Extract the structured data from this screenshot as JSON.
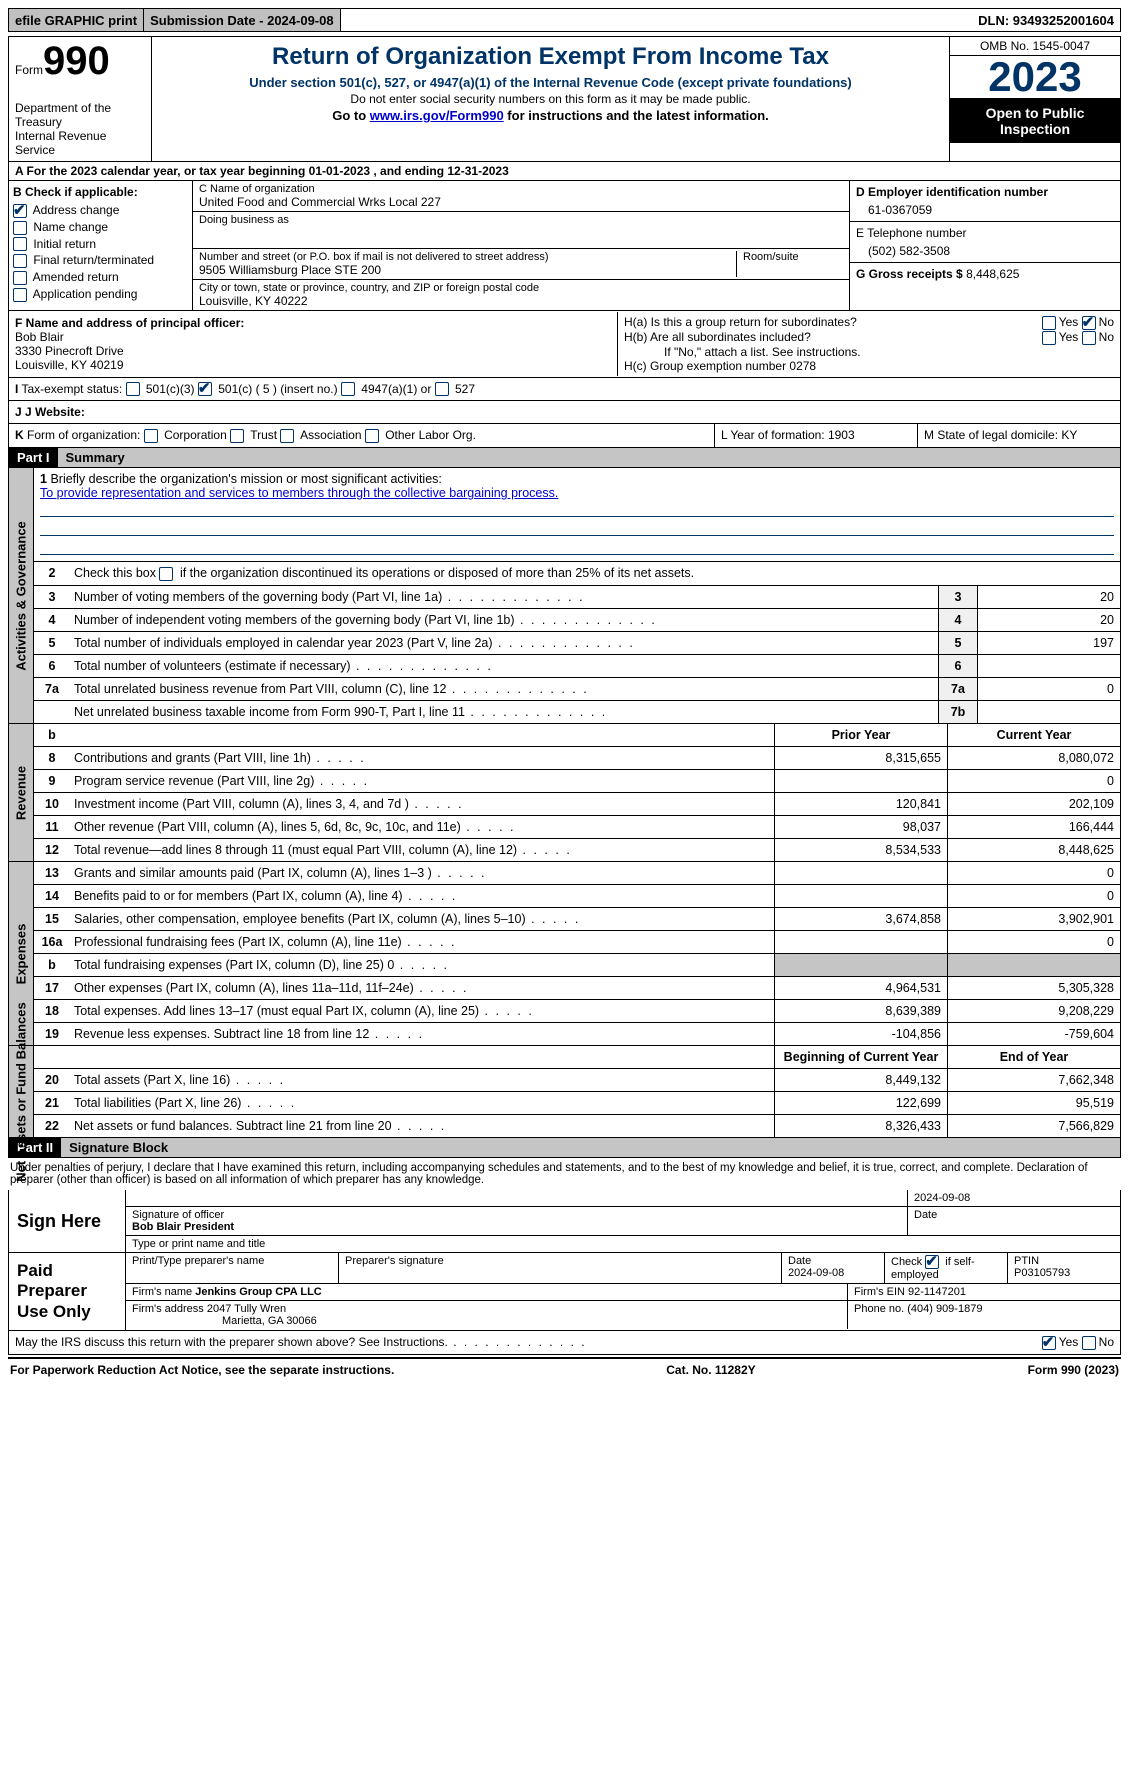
{
  "topbar": {
    "efile": "efile GRAPHIC print",
    "submission": "Submission Date - 2024-09-08",
    "dln": "DLN: 93493252001604"
  },
  "header": {
    "form_label": "Form",
    "form_no": "990",
    "dept": "Department of the Treasury\nInternal Revenue Service",
    "title": "Return of Organization Exempt From Income Tax",
    "subtitle": "Under section 501(c), 527, or 4947(a)(1) of the Internal Revenue Code (except private foundations)",
    "note": "Do not enter social security numbers on this form as it may be made public.",
    "goto_prefix": "Go to ",
    "goto_link": "www.irs.gov/Form990",
    "goto_suffix": " for instructions and the latest information.",
    "omb": "OMB No. 1545-0047",
    "year": "2023",
    "inspection": "Open to Public Inspection"
  },
  "row_a": "A   For the 2023 calendar year, or tax year beginning 01-01-2023   , and ending 12-31-2023",
  "col_b": {
    "header": "B Check if applicable:",
    "items": [
      {
        "label": "Address change",
        "checked": true
      },
      {
        "label": "Name change",
        "checked": false
      },
      {
        "label": "Initial return",
        "checked": false
      },
      {
        "label": "Final return/terminated",
        "checked": false
      },
      {
        "label": "Amended return",
        "checked": false
      },
      {
        "label": "Application pending",
        "checked": false
      }
    ]
  },
  "col_c": {
    "name_label": "C Name of organization",
    "name": "United Food and Commercial Wrks Local 227",
    "dba_label": "Doing business as",
    "dba": "",
    "addr_label": "Number and street (or P.O. box if mail is not delivered to street address)",
    "room_label": "Room/suite",
    "addr": "9505 Williamsburg Place STE 200",
    "city_label": "City or town, state or province, country, and ZIP or foreign postal code",
    "city": "Louisville, KY  40222"
  },
  "col_d": {
    "ein_label": "D Employer identification number",
    "ein": "61-0367059",
    "tel_label": "E Telephone number",
    "tel": "(502) 582-3508",
    "gross_label": "G Gross receipts $ ",
    "gross": "8,448,625"
  },
  "section_f": {
    "label": "F  Name and address of principal officer:",
    "name": "Bob Blair",
    "addr1": "3330 Pinecroft Drive",
    "addr2": "Louisville, KY  40219"
  },
  "section_h": {
    "ha": "H(a)  Is this a group return for subordinates?",
    "hb": "H(b)  Are all subordinates included?",
    "hb_note": "If \"No,\" attach a list. See instructions.",
    "hc": "H(c)  Group exemption number    0278",
    "yes": "Yes",
    "no": "No"
  },
  "tax_status": {
    "label": "I  Tax-exempt status:",
    "opt1": "501(c)(3)",
    "opt2": "501(c) ( 5 ) (insert no.)",
    "opt3": "4947(a)(1) or",
    "opt4": "527"
  },
  "website": {
    "label": "J  Website:",
    "value": ""
  },
  "form_org": {
    "label": "K Form of organization:",
    "opts": [
      "Corporation",
      "Trust",
      "Association",
      "Other  Labor Org."
    ],
    "year_label": "L Year of formation: 1903",
    "state_label": "M State of legal domicile: KY"
  },
  "part1": {
    "label": "Part I",
    "title": "Summary"
  },
  "summary": {
    "side1": "Activities & Governance",
    "side2": "Revenue",
    "side3": "Expenses",
    "side4": "Net Assets or Fund Balances",
    "line1_label": "Briefly describe the organization's mission or most significant activities:",
    "line1_text": "To provide representation and services to members through the collective bargaining process.",
    "line2": "Check this box       if the organization discontinued its operations or disposed of more than 25% of its net assets.",
    "lines_gov": [
      {
        "n": "3",
        "d": "Number of voting members of the governing body (Part VI, line 1a)",
        "bn": "3",
        "v": "20"
      },
      {
        "n": "4",
        "d": "Number of independent voting members of the governing body (Part VI, line 1b)",
        "bn": "4",
        "v": "20"
      },
      {
        "n": "5",
        "d": "Total number of individuals employed in calendar year 2023 (Part V, line 2a)",
        "bn": "5",
        "v": "197"
      },
      {
        "n": "6",
        "d": "Total number of volunteers (estimate if necessary)",
        "bn": "6",
        "v": ""
      },
      {
        "n": "7a",
        "d": "Total unrelated business revenue from Part VIII, column (C), line 12",
        "bn": "7a",
        "v": "0"
      },
      {
        "n": "",
        "d": "Net unrelated business taxable income from Form 990-T, Part I, line 11",
        "bn": "7b",
        "v": ""
      }
    ],
    "col_headers_b": {
      "n": "b",
      "prior": "Prior Year",
      "curr": "Current Year"
    },
    "lines_rev": [
      {
        "n": "8",
        "d": "Contributions and grants (Part VIII, line 1h)",
        "p": "8,315,655",
        "c": "8,080,072"
      },
      {
        "n": "9",
        "d": "Program service revenue (Part VIII, line 2g)",
        "p": "",
        "c": "0"
      },
      {
        "n": "10",
        "d": "Investment income (Part VIII, column (A), lines 3, 4, and 7d )",
        "p": "120,841",
        "c": "202,109"
      },
      {
        "n": "11",
        "d": "Other revenue (Part VIII, column (A), lines 5, 6d, 8c, 9c, 10c, and 11e)",
        "p": "98,037",
        "c": "166,444"
      },
      {
        "n": "12",
        "d": "Total revenue—add lines 8 through 11 (must equal Part VIII, column (A), line 12)",
        "p": "8,534,533",
        "c": "8,448,625"
      }
    ],
    "lines_exp": [
      {
        "n": "13",
        "d": "Grants and similar amounts paid (Part IX, column (A), lines 1–3 )",
        "p": "",
        "c": "0"
      },
      {
        "n": "14",
        "d": "Benefits paid to or for members (Part IX, column (A), line 4)",
        "p": "",
        "c": "0"
      },
      {
        "n": "15",
        "d": "Salaries, other compensation, employee benefits (Part IX, column (A), lines 5–10)",
        "p": "3,674,858",
        "c": "3,902,901"
      },
      {
        "n": "16a",
        "d": "Professional fundraising fees (Part IX, column (A), line 11e)",
        "p": "",
        "c": "0"
      },
      {
        "n": "b",
        "d": "Total fundraising expenses (Part IX, column (D), line 25) 0",
        "p": "GREY",
        "c": "GREY"
      },
      {
        "n": "17",
        "d": "Other expenses (Part IX, column (A), lines 11a–11d, 11f–24e)",
        "p": "4,964,531",
        "c": "5,305,328"
      },
      {
        "n": "18",
        "d": "Total expenses. Add lines 13–17 (must equal Part IX, column (A), line 25)",
        "p": "8,639,389",
        "c": "9,208,229"
      },
      {
        "n": "19",
        "d": "Revenue less expenses. Subtract line 18 from line 12",
        "p": "-104,856",
        "c": "-759,604"
      }
    ],
    "col_headers_net": {
      "prior": "Beginning of Current Year",
      "curr": "End of Year"
    },
    "lines_net": [
      {
        "n": "20",
        "d": "Total assets (Part X, line 16)",
        "p": "8,449,132",
        "c": "7,662,348"
      },
      {
        "n": "21",
        "d": "Total liabilities (Part X, line 26)",
        "p": "122,699",
        "c": "95,519"
      },
      {
        "n": "22",
        "d": "Net assets or fund balances. Subtract line 21 from line 20",
        "p": "8,326,433",
        "c": "7,566,829"
      }
    ]
  },
  "part2": {
    "label": "Part II",
    "title": "Signature Block"
  },
  "perjury": "Under penalties of perjury, I declare that I have examined this return, including accompanying schedules and statements, and to the best of my knowledge and belief, it is true, correct, and complete. Declaration of preparer (other than officer) is based on all information of which preparer has any knowledge.",
  "sign_here": {
    "label": "Sign Here",
    "sig_date": "2024-09-08",
    "sig_label": "Signature of officer",
    "officer": "Bob Blair  President",
    "type_label": "Type or print name and title",
    "date_label": "Date"
  },
  "paid_prep": {
    "label": "Paid Preparer Use Only",
    "col1": "Print/Type preparer's name",
    "col2": "Preparer's signature",
    "col3_label": "Date",
    "col3": "2024-09-08",
    "col4_label": "Check        if self-employed",
    "col5_label": "PTIN",
    "col5": "P03105793",
    "firm_name_label": "Firm's name      ",
    "firm_name": "Jenkins Group CPA LLC",
    "firm_ein": "Firm's EIN  92-1147201",
    "firm_addr_label": "Firm's address ",
    "firm_addr1": "2047 Tully Wren",
    "firm_addr2": "Marietta, GA  30066",
    "phone": "Phone no. (404) 909-1879"
  },
  "discuss": {
    "text": "May the IRS discuss this return with the preparer shown above? See Instructions.",
    "yes": "Yes",
    "no": "No"
  },
  "footer": {
    "left": "For Paperwork Reduction Act Notice, see the separate instructions.",
    "mid": "Cat. No. 11282Y",
    "right_form": "Form ",
    "right_no": "990",
    "right_year": " (2023)"
  }
}
